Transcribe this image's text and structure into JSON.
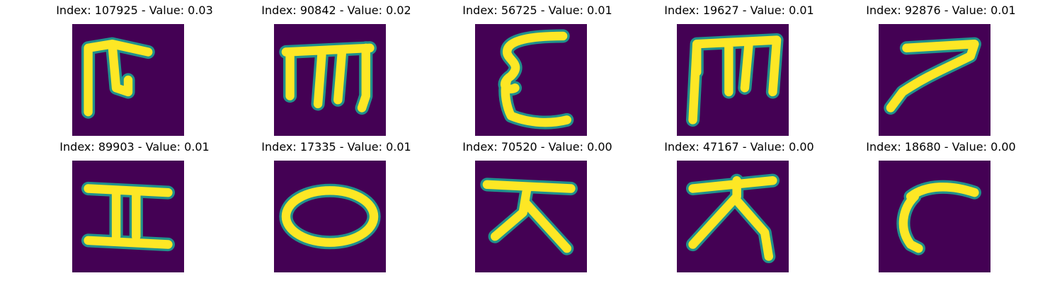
{
  "colors": {
    "background": "#440154",
    "stroke_edge": "#21918c",
    "stroke_core": "#fde725"
  },
  "panels": [
    {
      "title": "Index: 107925 - Value: 0.03"
    },
    {
      "title": "Index: 90842 - Value: 0.02"
    },
    {
      "title": "Index: 56725 - Value: 0.01"
    },
    {
      "title": "Index: 19627 - Value: 0.01"
    },
    {
      "title": "Index: 92876 - Value: 0.01"
    },
    {
      "title": "Index: 89903 - Value: 0.01"
    },
    {
      "title": "Index: 17335 - Value: 0.01"
    },
    {
      "title": "Index: 70520 - Value: 0.00"
    },
    {
      "title": "Index: 47167 - Value: 0.00"
    },
    {
      "title": "Index: 18680 - Value: 0.00"
    }
  ]
}
